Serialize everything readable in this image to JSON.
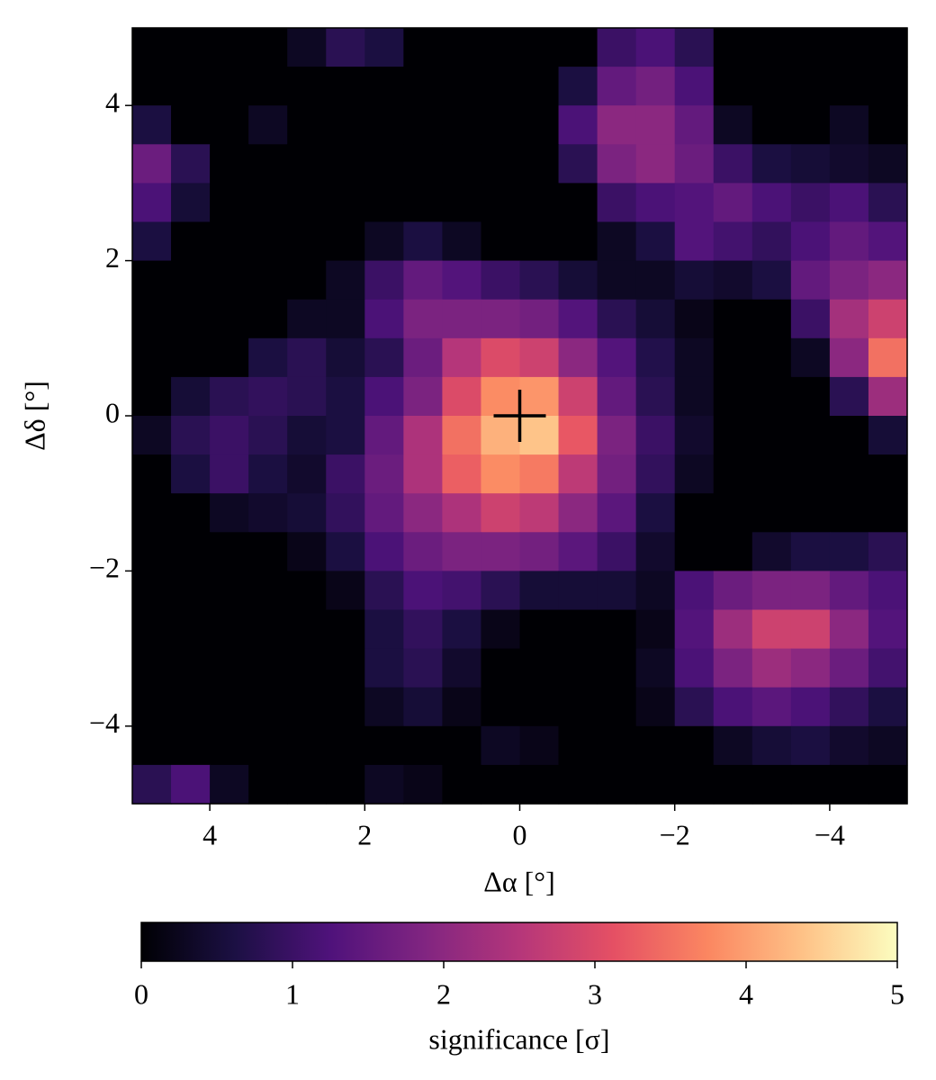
{
  "chart_data": {
    "type": "heatmap",
    "xlabel": "Δα [°]",
    "ylabel": "Δδ [°]",
    "xlim": [
      5,
      -5
    ],
    "ylim": [
      -5,
      5
    ],
    "xticks": [
      4,
      2,
      0,
      {
        "value": -2,
        "label": "−2"
      },
      {
        "value": -4,
        "label": "−4"
      }
    ],
    "yticks": [
      {
        "value": -4,
        "label": "−4"
      },
      {
        "value": -2,
        "label": "−2"
      },
      0,
      2,
      4
    ],
    "z": [
      [
        0,
        0,
        0,
        0,
        0.3,
        0.8,
        0.6,
        0,
        0,
        0,
        0,
        0,
        1.0,
        1.2,
        0.8,
        0,
        0,
        0,
        0,
        0
      ],
      [
        0,
        0,
        0,
        0,
        0,
        0,
        0,
        0,
        0,
        0,
        0,
        0.6,
        1.5,
        1.7,
        1.2,
        0,
        0,
        0,
        0,
        0
      ],
      [
        0.6,
        0,
        0,
        0.3,
        0,
        0,
        0,
        0,
        0,
        0,
        0,
        1.2,
        2.0,
        2.0,
        1.5,
        0.3,
        0,
        0,
        0.3,
        0
      ],
      [
        1.6,
        0.8,
        0,
        0,
        0,
        0,
        0,
        0,
        0,
        0,
        0,
        0.8,
        1.8,
        2.0,
        1.6,
        1.0,
        0.6,
        0.5,
        0.4,
        0.3
      ],
      [
        1.2,
        0.5,
        0,
        0,
        0,
        0,
        0,
        0,
        0,
        0,
        0,
        0,
        1.0,
        1.2,
        1.3,
        1.5,
        1.2,
        1.0,
        1.2,
        0.8
      ],
      [
        0.6,
        0,
        0,
        0,
        0,
        0,
        0.3,
        0.6,
        0.3,
        0,
        0,
        0,
        0.3,
        0.6,
        1.3,
        1.1,
        0.9,
        1.2,
        1.5,
        1.3
      ],
      [
        0,
        0,
        0,
        0,
        0,
        0.3,
        1.0,
        1.5,
        1.3,
        1.0,
        0.8,
        0.5,
        0.3,
        0.3,
        0.5,
        0.4,
        0.6,
        1.5,
        1.8,
        2.0
      ],
      [
        0,
        0,
        0,
        0,
        0.3,
        0.3,
        1.2,
        1.8,
        1.8,
        1.8,
        1.7,
        1.3,
        0.8,
        0.5,
        0.2,
        0,
        0,
        1.0,
        2.3,
        2.8
      ],
      [
        0,
        0,
        0,
        0.6,
        0.8,
        0.5,
        0.8,
        1.6,
        2.5,
        3.0,
        2.8,
        2.0,
        1.3,
        0.7,
        0.3,
        0,
        0,
        0.3,
        2.0,
        3.5
      ],
      [
        0,
        0.5,
        0.8,
        0.9,
        0.8,
        0.6,
        1.2,
        1.8,
        3.0,
        3.8,
        3.9,
        2.8,
        1.5,
        0.8,
        0.3,
        0,
        0,
        0,
        0.8,
        2.2
      ],
      [
        0.3,
        0.8,
        1.0,
        0.8,
        0.5,
        0.6,
        1.5,
        2.4,
        3.5,
        4.2,
        4.4,
        3.2,
        1.8,
        1.0,
        0.4,
        0,
        0,
        0,
        0,
        0.5
      ],
      [
        0,
        0.6,
        1.0,
        0.6,
        0.4,
        1.0,
        1.6,
        2.4,
        3.3,
        3.8,
        3.6,
        2.6,
        1.7,
        0.9,
        0.3,
        0,
        0,
        0,
        0,
        0
      ],
      [
        0,
        0,
        0.3,
        0.4,
        0.5,
        0.9,
        1.5,
        2.0,
        2.4,
        2.8,
        2.6,
        2.0,
        1.4,
        0.6,
        0,
        0,
        0,
        0,
        0,
        0
      ],
      [
        0,
        0,
        0,
        0,
        0.2,
        0.6,
        1.2,
        1.6,
        1.8,
        1.8,
        1.7,
        1.4,
        1.0,
        0.4,
        0,
        0,
        0.4,
        0.6,
        0.6,
        0.8
      ],
      [
        0,
        0,
        0,
        0,
        0,
        0.2,
        0.8,
        1.2,
        1.1,
        0.8,
        0.5,
        0.5,
        0.5,
        0.3,
        1.2,
        1.6,
        1.8,
        1.8,
        1.5,
        1.2
      ],
      [
        0,
        0,
        0,
        0,
        0,
        0,
        0.6,
        0.9,
        0.6,
        0.2,
        0,
        0,
        0,
        0.2,
        1.3,
        2.2,
        2.8,
        2.8,
        2.0,
        1.3
      ],
      [
        0,
        0,
        0,
        0,
        0,
        0,
        0.6,
        0.8,
        0.4,
        0,
        0,
        0,
        0,
        0.3,
        1.2,
        1.8,
        2.2,
        2.0,
        1.6,
        1.1
      ],
      [
        0,
        0,
        0,
        0,
        0,
        0,
        0.3,
        0.5,
        0.2,
        0,
        0,
        0,
        0,
        0.2,
        0.8,
        1.2,
        1.4,
        1.2,
        0.9,
        0.6
      ],
      [
        0,
        0,
        0,
        0,
        0,
        0,
        0,
        0,
        0,
        0.3,
        0.2,
        0,
        0,
        0,
        0,
        0.3,
        0.5,
        0.6,
        0.4,
        0.3
      ],
      [
        0.8,
        1.2,
        0.3,
        0,
        0,
        0,
        0.3,
        0.2,
        0,
        0,
        0,
        0,
        0,
        0,
        0,
        0,
        0,
        0,
        0,
        0
      ]
    ],
    "marker": {
      "x": 0,
      "y": 0
    },
    "colorscale": [
      "#000004",
      "#1c1044",
      "#4f127b",
      "#812581",
      "#b5367a",
      "#e55064",
      "#fb8761",
      "#fec287",
      "#fcfdbf"
    ],
    "clim": [
      0,
      5
    ],
    "cticks": [
      0,
      1,
      2,
      3,
      4,
      5
    ],
    "clabel": "significance [σ]"
  }
}
